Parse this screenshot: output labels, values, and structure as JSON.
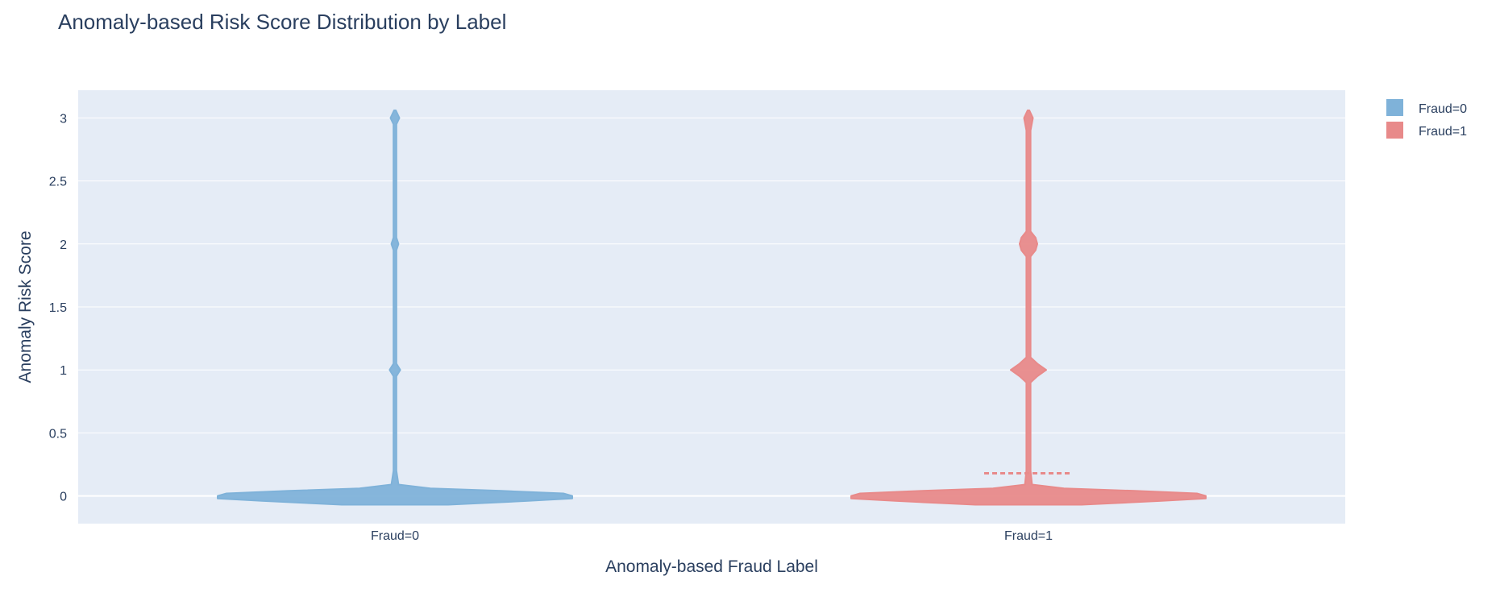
{
  "chart_data": {
    "type": "violin",
    "title": "Anomaly-based Risk Score Distribution by Label",
    "xlabel": "Anomaly-based Fraud Label",
    "ylabel": "Anomaly Risk Score",
    "categories": [
      "Fraud=0",
      "Fraud=1"
    ],
    "yticks": [
      "0",
      "0.5",
      "1",
      "1.5",
      "2",
      "2.5",
      "3"
    ],
    "ylim": [
      -0.22,
      3.22
    ],
    "grid": true,
    "legend_position": "top-right",
    "series": [
      {
        "name": "Fraud=0",
        "color": "#7fb2d9",
        "density": [
          [
            -0.07,
            0.3
          ],
          [
            -0.04,
            0.75
          ],
          [
            -0.02,
            1.0
          ],
          [
            0.0,
            1.0
          ],
          [
            0.02,
            0.95
          ],
          [
            0.04,
            0.6
          ],
          [
            0.06,
            0.2
          ],
          [
            0.09,
            0.02
          ],
          [
            0.2,
            0.008
          ],
          [
            0.95,
            0.008
          ],
          [
            1.0,
            0.03
          ],
          [
            1.05,
            0.008
          ],
          [
            1.95,
            0.008
          ],
          [
            2.0,
            0.02
          ],
          [
            2.05,
            0.008
          ],
          [
            2.95,
            0.008
          ],
          [
            3.0,
            0.025
          ],
          [
            3.06,
            0.005
          ]
        ],
        "mean": null
      },
      {
        "name": "Fraud=1",
        "color": "#e88a8a",
        "density": [
          [
            -0.07,
            0.3
          ],
          [
            -0.04,
            0.75
          ],
          [
            -0.02,
            1.0
          ],
          [
            0.0,
            1.0
          ],
          [
            0.02,
            0.95
          ],
          [
            0.04,
            0.6
          ],
          [
            0.06,
            0.2
          ],
          [
            0.09,
            0.02
          ],
          [
            0.2,
            0.012
          ],
          [
            0.9,
            0.012
          ],
          [
            0.95,
            0.05
          ],
          [
            1.0,
            0.1
          ],
          [
            1.05,
            0.05
          ],
          [
            1.1,
            0.012
          ],
          [
            1.9,
            0.012
          ],
          [
            1.95,
            0.04
          ],
          [
            2.0,
            0.05
          ],
          [
            2.05,
            0.04
          ],
          [
            2.1,
            0.012
          ],
          [
            2.9,
            0.012
          ],
          [
            3.0,
            0.025
          ],
          [
            3.06,
            0.005
          ]
        ],
        "mean": 0.18
      }
    ]
  }
}
